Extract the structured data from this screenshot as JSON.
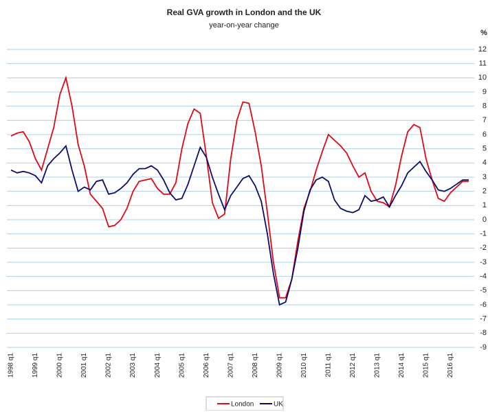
{
  "chart_data": {
    "type": "line",
    "title": "Real GVA growth in London and the UK",
    "subtitle": "year-on-year change",
    "y_axis_label": "%",
    "categories": [
      "1998 q1",
      null,
      null,
      null,
      "1999 q1",
      null,
      null,
      null,
      "2000 q1",
      null,
      null,
      null,
      "2001 q1",
      null,
      null,
      null,
      "2002 q1",
      null,
      null,
      null,
      "2003 q1",
      null,
      null,
      null,
      "2004 q1",
      null,
      null,
      null,
      "2005 q1",
      null,
      null,
      null,
      "2006 q1",
      null,
      null,
      null,
      "2007 q1",
      null,
      null,
      null,
      "2008 q1",
      null,
      null,
      null,
      "2009 q1",
      null,
      null,
      null,
      "2010 q1",
      null,
      null,
      null,
      "2011 q1",
      null,
      null,
      null,
      "2012 q1",
      null,
      null,
      null,
      "2013 q1",
      null,
      null,
      null,
      "2014 q1",
      null,
      null,
      null,
      "2015 q1",
      null,
      null,
      null,
      "2016 q1",
      null,
      null,
      null
    ],
    "series": [
      {
        "name": "London",
        "color": "#e30613",
        "values": [
          5.9,
          6.1,
          6.2,
          5.5,
          4.3,
          3.5,
          5.0,
          6.5,
          8.8,
          10.0,
          8.0,
          5.3,
          3.8,
          1.8,
          1.3,
          0.8,
          -0.5,
          -0.4,
          0.0,
          0.8,
          2.0,
          2.7,
          2.8,
          2.9,
          2.2,
          1.8,
          1.8,
          2.6,
          5.0,
          6.8,
          7.8,
          7.5,
          4.5,
          1.2,
          0.1,
          0.4,
          4.3,
          7.0,
          8.3,
          8.2,
          6.2,
          3.8,
          0.5,
          -3.0,
          -5.5,
          -5.5,
          -4.2,
          -1.5,
          0.8,
          2.0,
          3.5,
          4.8,
          6.0,
          5.6,
          5.2,
          4.7,
          3.8,
          3.0,
          3.3,
          2.0,
          1.3,
          1.2,
          0.9,
          2.4,
          4.5,
          6.2,
          6.7,
          6.5,
          4.3,
          2.8,
          1.5,
          1.3,
          1.9,
          2.3,
          2.7,
          2.7
        ]
      },
      {
        "name": "UK",
        "color": "#0a0a6e",
        "values": [
          3.5,
          3.3,
          3.4,
          3.3,
          3.1,
          2.6,
          3.8,
          4.3,
          4.7,
          5.2,
          3.5,
          2.0,
          2.3,
          2.1,
          2.7,
          2.8,
          1.8,
          1.9,
          2.2,
          2.6,
          3.2,
          3.6,
          3.6,
          3.8,
          3.5,
          2.8,
          1.9,
          1.4,
          1.5,
          2.5,
          3.8,
          5.1,
          4.4,
          3.0,
          1.8,
          0.7,
          1.7,
          2.3,
          2.9,
          3.1,
          2.4,
          1.3,
          -1.0,
          -3.8,
          -6.0,
          -5.8,
          -4.2,
          -2.0,
          0.6,
          2.1,
          2.8,
          3.0,
          2.7,
          1.4,
          0.8,
          0.6,
          0.5,
          0.7,
          1.7,
          1.3,
          1.4,
          1.6,
          0.9,
          1.7,
          2.4,
          3.3,
          3.7,
          4.1,
          3.4,
          2.8,
          2.1,
          2.0,
          2.2,
          2.5,
          2.8,
          2.8
        ]
      }
    ],
    "ylim": [
      -9,
      12
    ],
    "yticks": [
      -9,
      -8,
      -7,
      -6,
      -5,
      -4,
      -3,
      -2,
      -1,
      0,
      1,
      2,
      3,
      4,
      5,
      6,
      7,
      8,
      9,
      10,
      11,
      12
    ],
    "grid": true,
    "legend": "bottom"
  }
}
